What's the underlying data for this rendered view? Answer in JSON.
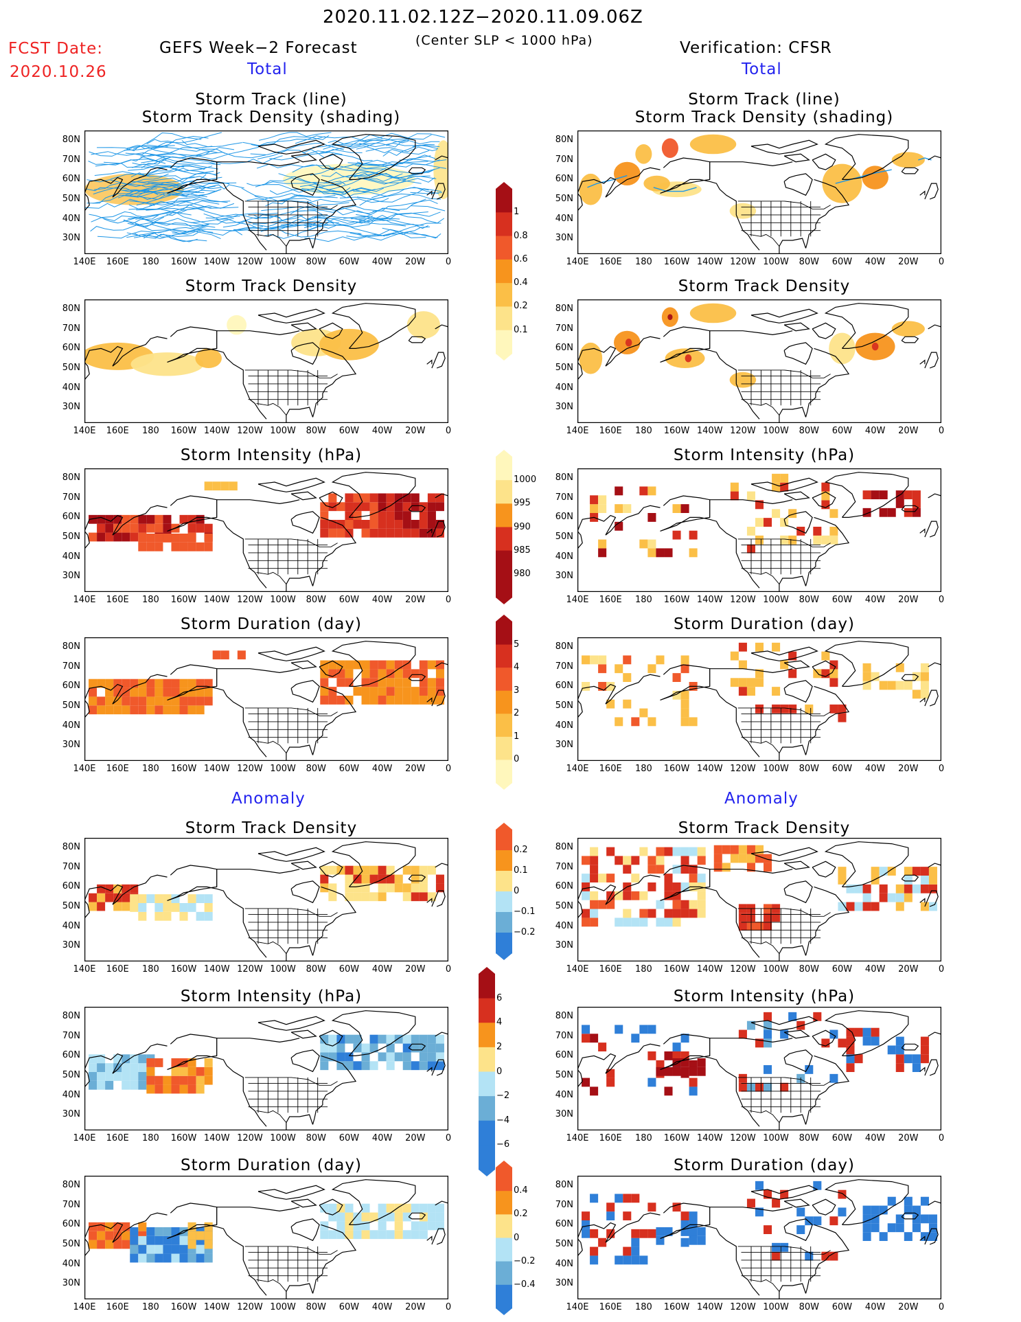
{
  "header": {
    "date_range": "2020.11.02.12Z−2020.11.09.06Z",
    "condition": "(Center SLP < 1000 hPa)",
    "fcst_label": "FCST Date:",
    "fcst_date": "2020.10.26",
    "left_title": "GEFS Week−2 Forecast",
    "right_title": "Verification: CFSR",
    "total_label": "Total",
    "anomaly_label": "Anomaly"
  },
  "panel_titles": {
    "track_line": "Storm Track (line)",
    "track_shading": "Storm Track Density (shading)",
    "density": "Storm Track Density",
    "intensity": "Storm Intensity (hPa)",
    "duration": "Storm Duration (day)"
  },
  "axes": {
    "lat_labels": [
      "80N",
      "70N",
      "60N",
      "50N",
      "40N",
      "30N"
    ],
    "lon_labels": [
      "140E",
      "160E",
      "180",
      "160W",
      "140W",
      "120W",
      "100W",
      "80W",
      "60W",
      "40W",
      "20W",
      "0"
    ]
  },
  "colorbars": {
    "density_total": [
      "1",
      "0.8",
      "0.6",
      "0.4",
      "0.2",
      "0.1"
    ],
    "intensity_total": [
      "1000",
      "995",
      "990",
      "985",
      "980"
    ],
    "duration_total": [
      "5",
      "4",
      "3",
      "2",
      "1",
      "0"
    ],
    "density_anom": [
      "0.2",
      "0.1",
      "0",
      "−0.1",
      "−0.2"
    ],
    "intensity_anom": [
      "6",
      "4",
      "2",
      "0",
      "−2",
      "−4",
      "−6"
    ],
    "duration_anom": [
      "0.4",
      "0.2",
      "0",
      "−0.2",
      "−0.4"
    ]
  },
  "colors": {
    "dark_red": "#a50f15",
    "red": "#d7301f",
    "orange_red": "#f0592b",
    "orange": "#f7941d",
    "light_orange": "#fbbf47",
    "yellow": "#fde38a",
    "pale_yellow": "#fff7bc",
    "light_blue": "#b3e3f5",
    "mid_blue": "#6baed6",
    "blue": "#2f7fd8",
    "track_blue": "#1e96e6"
  }
}
